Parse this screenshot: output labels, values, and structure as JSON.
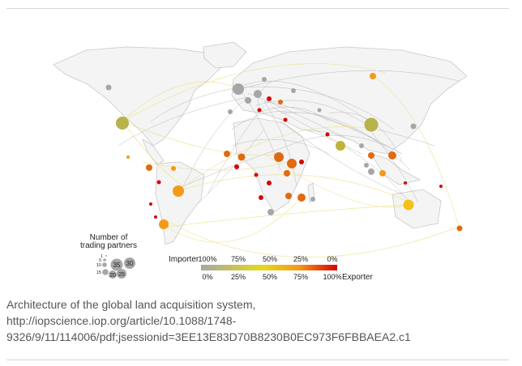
{
  "figure": {
    "legend_size": {
      "title_line1": "Number of",
      "title_line2": "trading partners",
      "values": [
        "1",
        "5",
        "10",
        "15",
        "35",
        "30",
        "20",
        "25"
      ]
    },
    "legend_color": {
      "importer_label": "Importer",
      "exporter_label": "Exporter",
      "top_ticks": [
        "100%",
        "75%",
        "50%",
        "25%",
        "0%"
      ],
      "bottom_ticks": [
        "0%",
        "25%",
        "50%",
        "75%",
        "100%"
      ],
      "gradient_colors": [
        "#a6a6a6",
        "#e6d81e",
        "#f29a1a",
        "#d90000"
      ]
    },
    "map_colors": {
      "land": "#f4f4f4",
      "coast": "#c9c9c9",
      "gray_link": "#a0a0a0",
      "yellow_link": "#ede28a"
    }
  },
  "caption": {
    "line1": "Architecture of the global land acquisition system,",
    "line2": "http://iopscience.iop.org/article/10.1088/1748-",
    "line3": "9326/9/11/114006/pdf;jsessionid=3EE13E83D70B8230B0EC973F6FBBAEA2.c1"
  }
}
